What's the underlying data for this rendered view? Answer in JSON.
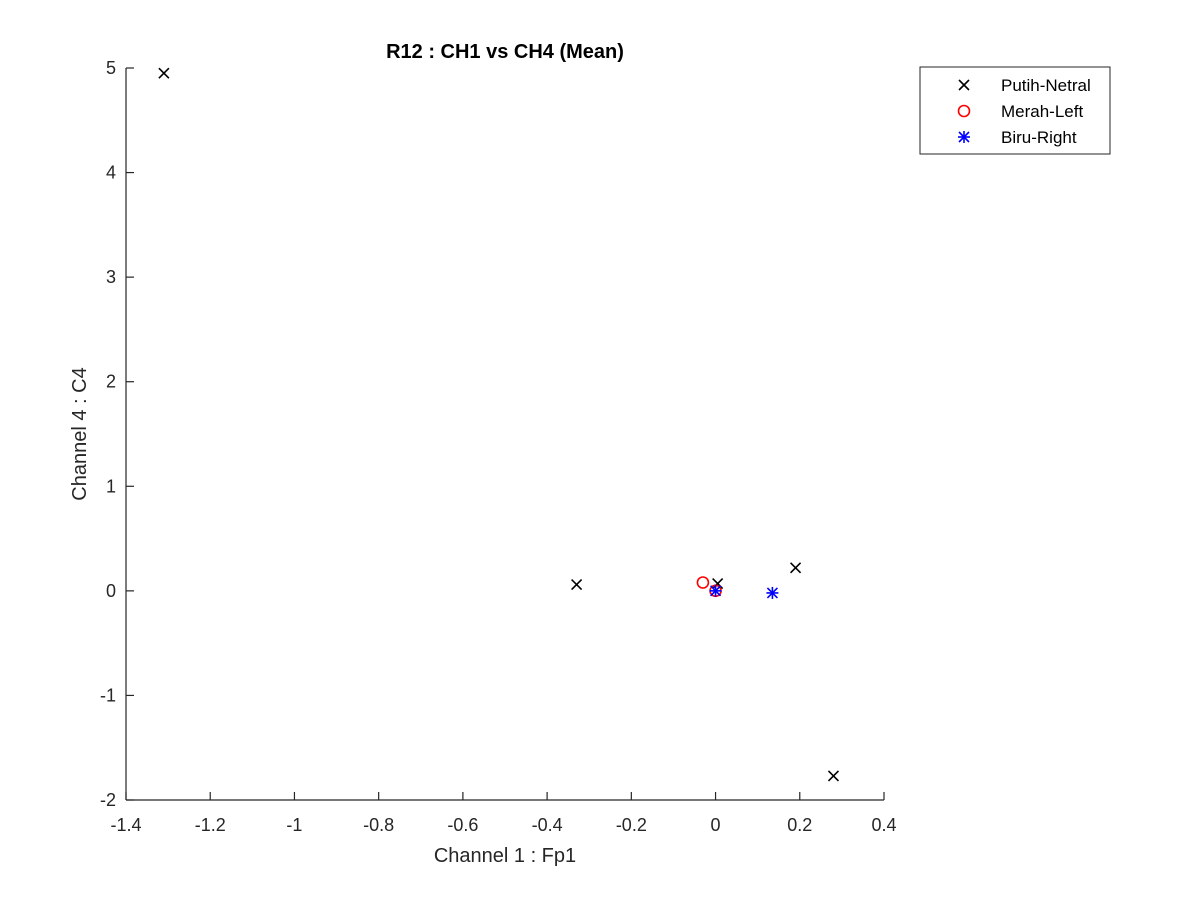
{
  "chart_data": {
    "type": "scatter",
    "title": "R12 : CH1 vs CH4 (Mean)",
    "xlabel": "Channel 1 : Fp1",
    "ylabel": "Channel 4 : C4",
    "xlim": [
      -1.4,
      0.4
    ],
    "ylim": [
      -2,
      5
    ],
    "xticks": [
      -1.4,
      -1.2,
      -1,
      -0.8,
      -0.6,
      -0.4,
      -0.2,
      0,
      0.2,
      0.4
    ],
    "xtick_labels": [
      "-1.4",
      "-1.2",
      "-1",
      "-0.8",
      "-0.6",
      "-0.4",
      "-0.2",
      "0",
      "0.2",
      "0.4"
    ],
    "yticks": [
      -2,
      -1,
      0,
      1,
      2,
      3,
      4,
      5
    ],
    "ytick_labels": [
      "-2",
      "-1",
      "0",
      "1",
      "2",
      "3",
      "4",
      "5"
    ],
    "grid": false,
    "legend_position": "top-right-outside",
    "series": [
      {
        "name": "Putih-Netral",
        "marker": "x",
        "color": "#000000",
        "points": [
          [
            -1.31,
            4.95
          ],
          [
            -0.33,
            0.06
          ],
          [
            0.005,
            0.07
          ],
          [
            0.19,
            0.22
          ],
          [
            0.28,
            -1.77
          ]
        ]
      },
      {
        "name": "Merah-Left",
        "marker": "circle",
        "color": "#ff0000",
        "points": [
          [
            -0.03,
            0.08
          ],
          [
            0.0,
            0.0
          ]
        ]
      },
      {
        "name": "Biru-Right",
        "marker": "asterisk",
        "color": "#0000ff",
        "points": [
          [
            0.0,
            0.0
          ],
          [
            0.135,
            -0.02
          ]
        ]
      }
    ]
  }
}
